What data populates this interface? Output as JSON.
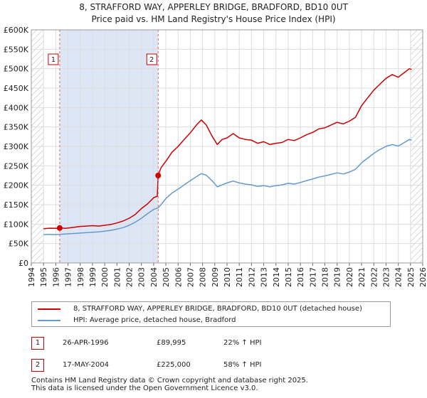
{
  "title_line1": "8, STRAFFORD WAY, APPERLEY BRIDGE, BRADFORD, BD10 0UT",
  "title_line2": "Price paid vs. HM Land Registry's House Price Index (HPI)",
  "colors": {
    "property": "#cc0000",
    "hpi": "#6699cc",
    "shade": "#dde6f5",
    "hatch": "#cccccc",
    "marker_line": "#e06060"
  },
  "chart_data": {
    "type": "line",
    "xlim": [
      1994,
      2026
    ],
    "ylim": [
      0,
      600000
    ],
    "x_ticks": [
      "1994",
      "1995",
      "1996",
      "1997",
      "1998",
      "1999",
      "2000",
      "2001",
      "2002",
      "2003",
      "2004",
      "2005",
      "2006",
      "2007",
      "2008",
      "2009",
      "2010",
      "2011",
      "2012",
      "2013",
      "2014",
      "2015",
      "2016",
      "2017",
      "2018",
      "2019",
      "2020",
      "2021",
      "2022",
      "2023",
      "2024",
      "2025",
      "2026"
    ],
    "y_ticks": [
      {
        "value": 0,
        "label": "£0"
      },
      {
        "value": 50000,
        "label": "£50K"
      },
      {
        "value": 100000,
        "label": "£100K"
      },
      {
        "value": 150000,
        "label": "£150K"
      },
      {
        "value": 200000,
        "label": "£200K"
      },
      {
        "value": 250000,
        "label": "£250K"
      },
      {
        "value": 300000,
        "label": "£300K"
      },
      {
        "value": 350000,
        "label": "£350K"
      },
      {
        "value": 400000,
        "label": "£400K"
      },
      {
        "value": 450000,
        "label": "£450K"
      },
      {
        "value": 500000,
        "label": "£500K"
      },
      {
        "value": 550000,
        "label": "£550K"
      },
      {
        "value": 600000,
        "label": "£600K"
      }
    ],
    "grid": true,
    "shaded_range": [
      1996.32,
      2004.37
    ],
    "hatched_before": 1995.0,
    "hatched_after": 2025.0,
    "series": [
      {
        "name": "8, STRAFFORD WAY, APPERLEY BRIDGE, BRADFORD, BD10 0UT (detached house)",
        "color": "#cc0000",
        "points": [
          [
            1995.0,
            88000
          ],
          [
            1995.5,
            89500
          ],
          [
            1996.0,
            89000
          ],
          [
            1996.32,
            89995
          ],
          [
            1996.8,
            89000
          ],
          [
            1997.5,
            92000
          ],
          [
            1998.0,
            94000
          ],
          [
            1998.5,
            95000
          ],
          [
            1999.0,
            96000
          ],
          [
            1999.5,
            95000
          ],
          [
            2000.0,
            97000
          ],
          [
            2000.5,
            99000
          ],
          [
            2001.0,
            103000
          ],
          [
            2001.5,
            108000
          ],
          [
            2002.0,
            115000
          ],
          [
            2002.5,
            125000
          ],
          [
            2003.0,
            140000
          ],
          [
            2003.5,
            152000
          ],
          [
            2004.0,
            168000
          ],
          [
            2004.3,
            172000
          ],
          [
            2004.37,
            225000
          ],
          [
            2004.6,
            245000
          ],
          [
            2005.0,
            262000
          ],
          [
            2005.5,
            285000
          ],
          [
            2006.0,
            300000
          ],
          [
            2006.5,
            318000
          ],
          [
            2007.0,
            335000
          ],
          [
            2007.5,
            355000
          ],
          [
            2007.9,
            368000
          ],
          [
            2008.3,
            355000
          ],
          [
            2008.8,
            325000
          ],
          [
            2009.2,
            305000
          ],
          [
            2009.6,
            318000
          ],
          [
            2010.0,
            322000
          ],
          [
            2010.5,
            333000
          ],
          [
            2011.0,
            322000
          ],
          [
            2011.5,
            318000
          ],
          [
            2012.0,
            316000
          ],
          [
            2012.5,
            308000
          ],
          [
            2013.0,
            312000
          ],
          [
            2013.5,
            305000
          ],
          [
            2014.0,
            308000
          ],
          [
            2014.5,
            310000
          ],
          [
            2015.0,
            318000
          ],
          [
            2015.5,
            315000
          ],
          [
            2016.0,
            322000
          ],
          [
            2016.5,
            330000
          ],
          [
            2017.0,
            336000
          ],
          [
            2017.5,
            345000
          ],
          [
            2018.0,
            348000
          ],
          [
            2018.5,
            355000
          ],
          [
            2019.0,
            362000
          ],
          [
            2019.5,
            358000
          ],
          [
            2020.0,
            365000
          ],
          [
            2020.5,
            375000
          ],
          [
            2021.0,
            405000
          ],
          [
            2021.5,
            425000
          ],
          [
            2022.0,
            445000
          ],
          [
            2022.5,
            460000
          ],
          [
            2023.0,
            475000
          ],
          [
            2023.5,
            485000
          ],
          [
            2024.0,
            478000
          ],
          [
            2024.5,
            490000
          ],
          [
            2024.9,
            500000
          ],
          [
            2025.1,
            498000
          ]
        ]
      },
      {
        "name": "HPI: Average price, detached house, Bradford",
        "color": "#6699cc",
        "points": [
          [
            1995.0,
            73000
          ],
          [
            1995.5,
            73500
          ],
          [
            1996.0,
            73000
          ],
          [
            1996.32,
            73800
          ],
          [
            1997.0,
            75000
          ],
          [
            1997.5,
            76000
          ],
          [
            1998.0,
            77000
          ],
          [
            1998.5,
            78000
          ],
          [
            1999.0,
            79000
          ],
          [
            1999.5,
            80000
          ],
          [
            2000.0,
            82000
          ],
          [
            2000.5,
            84000
          ],
          [
            2001.0,
            87000
          ],
          [
            2001.5,
            91000
          ],
          [
            2002.0,
            97000
          ],
          [
            2002.5,
            105000
          ],
          [
            2003.0,
            115000
          ],
          [
            2003.5,
            127000
          ],
          [
            2004.0,
            138000
          ],
          [
            2004.37,
            142000
          ],
          [
            2004.6,
            150000
          ],
          [
            2005.0,
            166000
          ],
          [
            2005.5,
            180000
          ],
          [
            2006.0,
            190000
          ],
          [
            2006.5,
            201000
          ],
          [
            2007.0,
            212000
          ],
          [
            2007.5,
            222000
          ],
          [
            2007.9,
            230000
          ],
          [
            2008.3,
            226000
          ],
          [
            2008.8,
            211000
          ],
          [
            2009.2,
            196000
          ],
          [
            2009.6,
            201000
          ],
          [
            2010.0,
            206000
          ],
          [
            2010.5,
            211000
          ],
          [
            2011.0,
            206000
          ],
          [
            2011.5,
            203000
          ],
          [
            2012.0,
            201000
          ],
          [
            2012.5,
            197000
          ],
          [
            2013.0,
            199000
          ],
          [
            2013.5,
            196000
          ],
          [
            2014.0,
            199000
          ],
          [
            2014.5,
            201000
          ],
          [
            2015.0,
            205000
          ],
          [
            2015.5,
            203000
          ],
          [
            2016.0,
            207000
          ],
          [
            2016.5,
            212000
          ],
          [
            2017.0,
            216000
          ],
          [
            2017.5,
            221000
          ],
          [
            2018.0,
            224000
          ],
          [
            2018.5,
            228000
          ],
          [
            2019.0,
            232000
          ],
          [
            2019.5,
            229000
          ],
          [
            2020.0,
            234000
          ],
          [
            2020.5,
            241000
          ],
          [
            2021.0,
            258000
          ],
          [
            2021.5,
            270000
          ],
          [
            2022.0,
            282000
          ],
          [
            2022.5,
            292000
          ],
          [
            2023.0,
            300000
          ],
          [
            2023.5,
            305000
          ],
          [
            2024.0,
            301000
          ],
          [
            2024.5,
            310000
          ],
          [
            2024.9,
            318000
          ],
          [
            2025.1,
            316000
          ]
        ]
      }
    ],
    "markers": [
      {
        "label": "1",
        "x": 1996.32,
        "y": 89995
      },
      {
        "label": "2",
        "x": 2004.37,
        "y": 225000
      }
    ]
  },
  "legend": {
    "property_label": "8, STRAFFORD WAY, APPERLEY BRIDGE, BRADFORD, BD10 0UT (detached house)",
    "hpi_label": "HPI: Average price, detached house, Bradford"
  },
  "sales": [
    {
      "num": "1",
      "date": "26-APR-1996",
      "price": "£89,995",
      "change": "22% ↑ HPI"
    },
    {
      "num": "2",
      "date": "17-MAY-2004",
      "price": "£225,000",
      "change": "58% ↑ HPI"
    }
  ],
  "footer": {
    "line1": "Contains HM Land Registry data © Crown copyright and database right 2025.",
    "line2": "This data is licensed under the Open Government Licence v3.0."
  }
}
